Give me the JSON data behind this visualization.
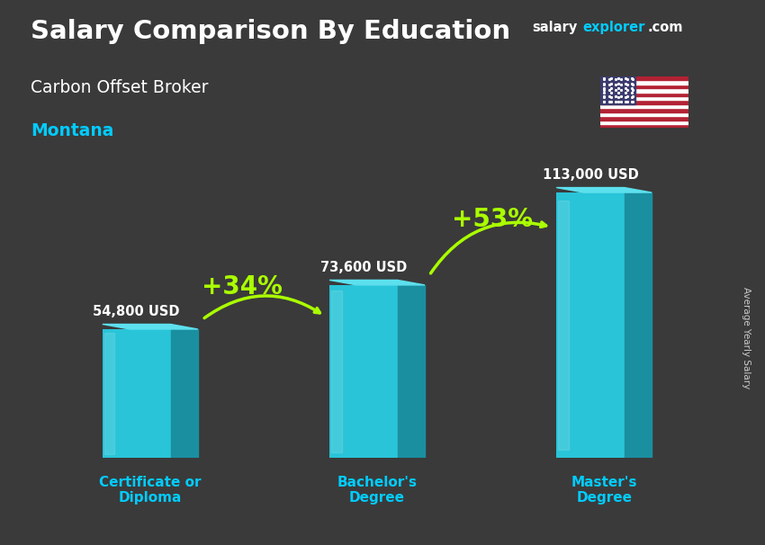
{
  "title": "Salary Comparison By Education",
  "subtitle": "Carbon Offset Broker",
  "location": "Montana",
  "categories": [
    "Certificate or\nDiploma",
    "Bachelor's\nDegree",
    "Master's\nDegree"
  ],
  "values": [
    54800,
    73600,
    113000
  ],
  "value_labels": [
    "54,800 USD",
    "73,600 USD",
    "113,000 USD"
  ],
  "pct_labels": [
    "+34%",
    "+53%"
  ],
  "bar_color_front": "#29c4d8",
  "bar_color_top": "#5de0ee",
  "bar_color_side": "#1a8fa0",
  "background_color": "#3a3a3a",
  "title_color": "#ffffff",
  "subtitle_color": "#ffffff",
  "location_color": "#00ccff",
  "category_color": "#00ccff",
  "value_label_color": "#ffffff",
  "pct_color": "#aaff00",
  "arrow_color": "#aaff00",
  "ylabel": "Average Yearly Salary",
  "website_salary": "salary",
  "website_explorer": "explorer",
  "website_com": ".com",
  "ylim": [
    0,
    130000
  ],
  "bar_width": 0.45,
  "x_positions": [
    1.0,
    2.5,
    4.0
  ],
  "depth": 0.18,
  "xlim": [
    0.3,
    4.8
  ]
}
